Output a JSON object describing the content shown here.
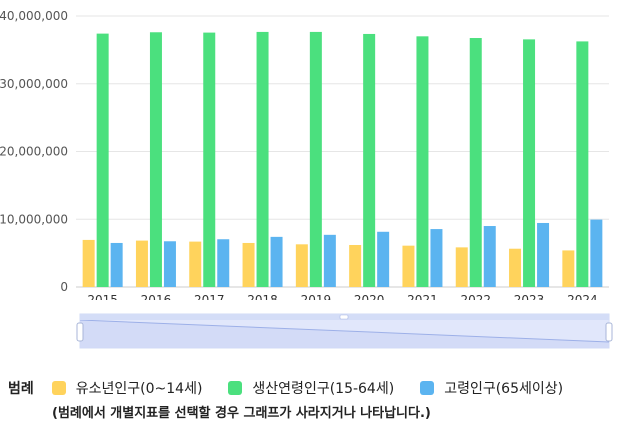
{
  "chart_data": {
    "type": "bar",
    "categories": [
      "2015",
      "2016",
      "2017",
      "2018",
      "2019",
      "2020",
      "2021",
      "2022",
      "2023",
      "2024"
    ],
    "series": [
      {
        "name": "유소년인구(0~14세)",
        "color": "#ffd35c",
        "values": [
          6950000,
          6850000,
          6700000,
          6500000,
          6300000,
          6200000,
          6100000,
          5850000,
          5650000,
          5400000
        ]
      },
      {
        "name": "생산연령인구(15-64세)",
        "color": "#4be07e",
        "values": [
          37400000,
          37600000,
          37550000,
          37650000,
          37650000,
          37350000,
          37000000,
          36750000,
          36550000,
          36250000
        ]
      },
      {
        "name": "고령인구(65세이상)",
        "color": "#5bb4f0",
        "values": [
          6500000,
          6750000,
          7050000,
          7400000,
          7700000,
          8150000,
          8550000,
          9000000,
          9450000,
          9950000
        ]
      }
    ],
    "y_ticks": [
      "0",
      "10,000,000",
      "20,000,000",
      "30,000,000",
      "40,000,000"
    ],
    "y_tick_values": [
      0,
      10000000,
      20000000,
      30000000,
      40000000
    ],
    "ylim": [
      0,
      40000000
    ],
    "grid": true,
    "legend_position": "bottom"
  },
  "legend": {
    "title": "범례",
    "note": "(범례에서 개별지표를 선택할 경우 그래프가 사라지거나 나타납니다.)"
  }
}
